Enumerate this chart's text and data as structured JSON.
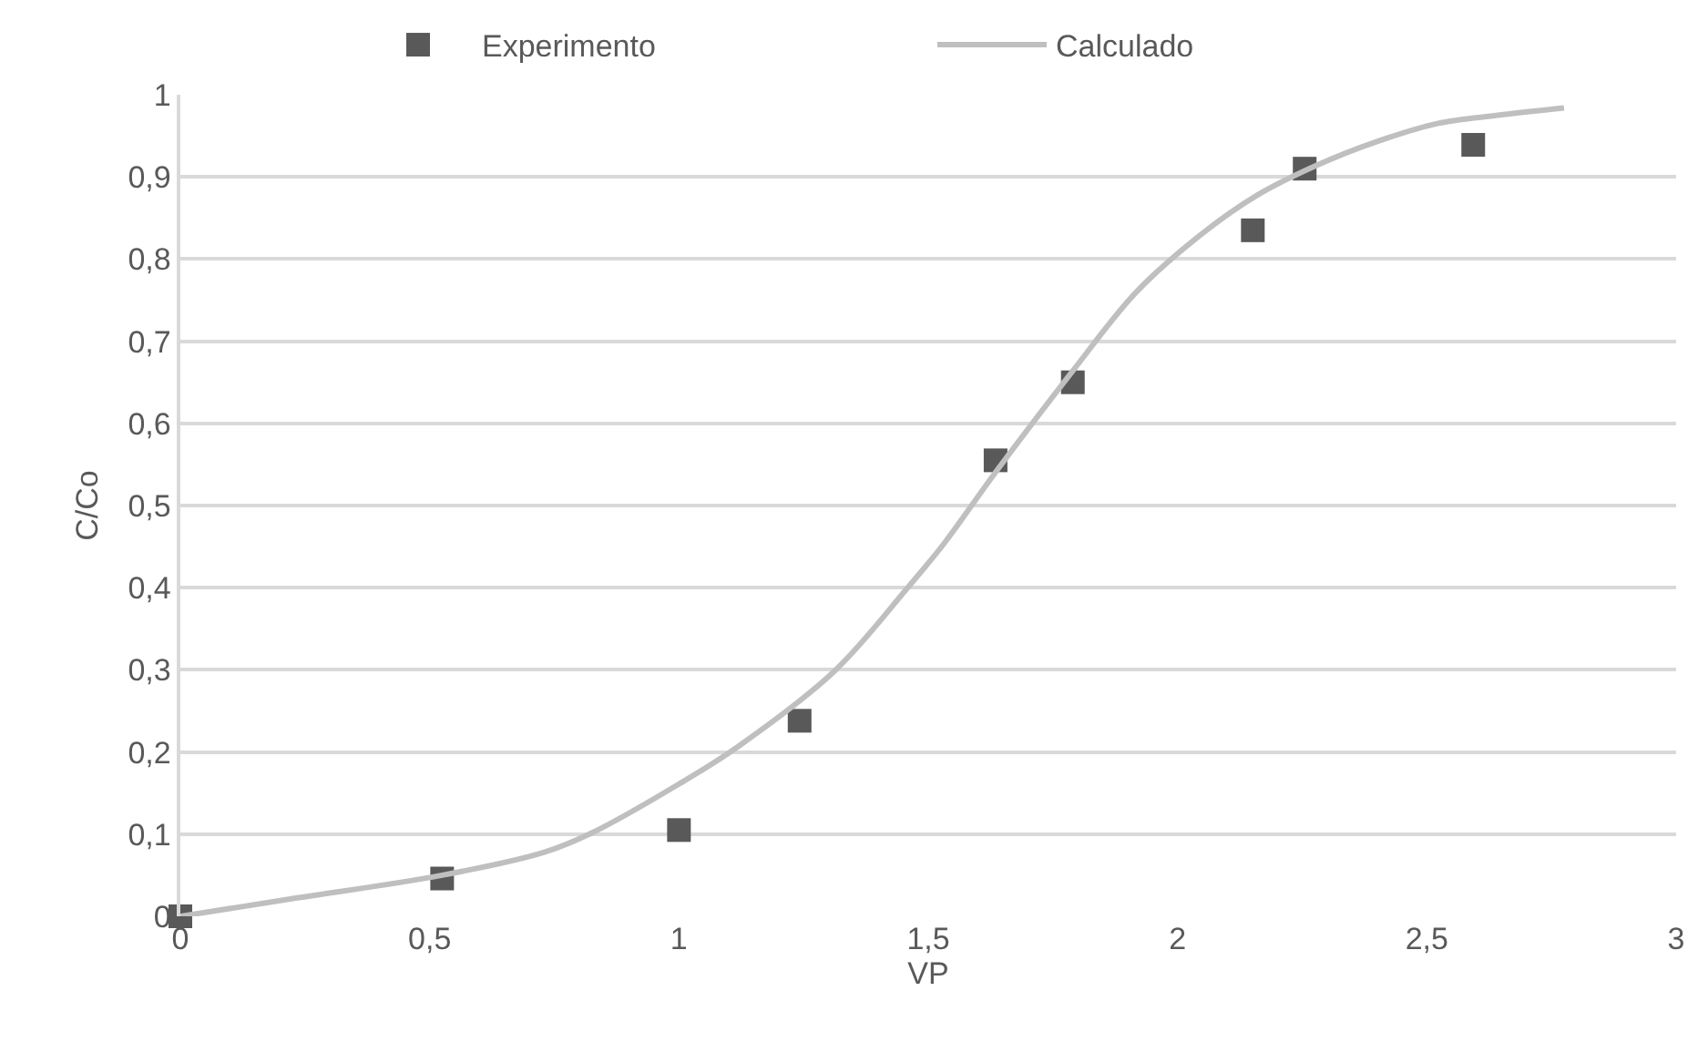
{
  "chart_data": {
    "type": "scatter",
    "xlabel": "VP",
    "ylabel": "C/Co",
    "xlim": [
      0,
      3
    ],
    "ylim": [
      0,
      1
    ],
    "xticks": [
      0,
      {
        "value": 0.5,
        "label": "0,5"
      },
      1,
      {
        "value": 1.5,
        "label": "1,5"
      },
      2,
      {
        "value": 2.5,
        "label": "2,5"
      },
      3
    ],
    "yticks": [
      0,
      {
        "value": 0.1,
        "label": "0,1"
      },
      {
        "value": 0.2,
        "label": "0,2"
      },
      {
        "value": 0.3,
        "label": "0,3"
      },
      {
        "value": 0.4,
        "label": "0,4"
      },
      {
        "value": 0.5,
        "label": "0,5"
      },
      {
        "value": 0.6,
        "label": "0,6"
      },
      {
        "value": 0.7,
        "label": "0,7"
      },
      {
        "value": 0.8,
        "label": "0,8"
      },
      {
        "value": 0.9,
        "label": "0,9"
      },
      1
    ],
    "grid": "y",
    "legend": "top",
    "series": [
      {
        "name": "Experimento",
        "marker": "square",
        "color": "#595959",
        "x": [
          0,
          0.525,
          1.0,
          1.242,
          1.635,
          1.79,
          2.151,
          2.255,
          2.593
        ],
        "values": [
          0,
          0.046,
          0.105,
          0.238,
          0.555,
          0.65,
          0.835,
          0.91,
          0.939
        ]
      },
      {
        "name": "Calculado",
        "type": "line",
        "marker": "none",
        "line_style": "solid",
        "color": "#bfbfbf",
        "x": [
          0,
          0.22,
          0.525,
          0.73,
          0.827,
          1.0,
          1.117,
          1.311,
          1.456,
          1.532,
          1.632,
          1.79,
          1.916,
          2.037,
          2.158,
          2.279,
          2.4,
          2.521,
          2.642,
          2.775
        ],
        "values": [
          0,
          0.021,
          0.05,
          0.078,
          0.102,
          0.161,
          0.206,
          0.298,
          0.398,
          0.454,
          0.538,
          0.664,
          0.759,
          0.825,
          0.877,
          0.914,
          0.943,
          0.965,
          0.975,
          0.984
        ]
      }
    ]
  }
}
